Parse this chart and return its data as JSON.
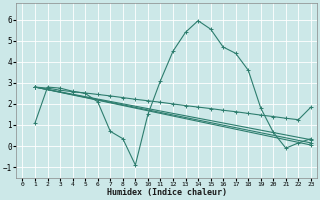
{
  "xlabel": "Humidex (Indice chaleur)",
  "bg_color": "#cce8e8",
  "grid_color": "#ffffff",
  "line_color": "#2d7d6e",
  "xlim": [
    -0.5,
    23.5
  ],
  "ylim": [
    -1.5,
    6.8
  ],
  "yticks": [
    -1,
    0,
    1,
    2,
    3,
    4,
    5,
    6
  ],
  "xticks": [
    0,
    1,
    2,
    3,
    4,
    5,
    6,
    7,
    8,
    9,
    10,
    11,
    12,
    13,
    14,
    15,
    16,
    17,
    18,
    19,
    20,
    21,
    22,
    23
  ],
  "series": [
    {
      "x": [
        1,
        2,
        3,
        4,
        5,
        6,
        7,
        8,
        9,
        10,
        11,
        12,
        13,
        14,
        15,
        16,
        17,
        18,
        19,
        20,
        21,
        22,
        23
      ],
      "y": [
        1.1,
        2.8,
        2.75,
        2.6,
        2.5,
        2.1,
        0.7,
        0.35,
        -0.9,
        1.5,
        3.1,
        4.5,
        5.4,
        5.95,
        5.55,
        4.7,
        4.4,
        3.6,
        1.8,
        0.65,
        -0.1,
        0.15,
        0.35
      ]
    },
    {
      "x": [
        1,
        2,
        3,
        4,
        5,
        6,
        7,
        8,
        9,
        10,
        11,
        12,
        13,
        14,
        15,
        16,
        17,
        18,
        19,
        20,
        21,
        22,
        23
      ],
      "y": [
        2.8,
        2.75,
        2.65,
        2.58,
        2.52,
        2.45,
        2.38,
        2.3,
        2.22,
        2.15,
        2.08,
        2.0,
        1.92,
        1.85,
        1.78,
        1.7,
        1.63,
        1.55,
        1.47,
        1.4,
        1.32,
        1.25,
        1.85
      ]
    },
    {
      "x": [
        1,
        23
      ],
      "y": [
        2.8,
        0.3
      ]
    },
    {
      "x": [
        1,
        23
      ],
      "y": [
        2.8,
        0.15
      ]
    },
    {
      "x": [
        1,
        23
      ],
      "y": [
        2.8,
        0.05
      ]
    }
  ]
}
